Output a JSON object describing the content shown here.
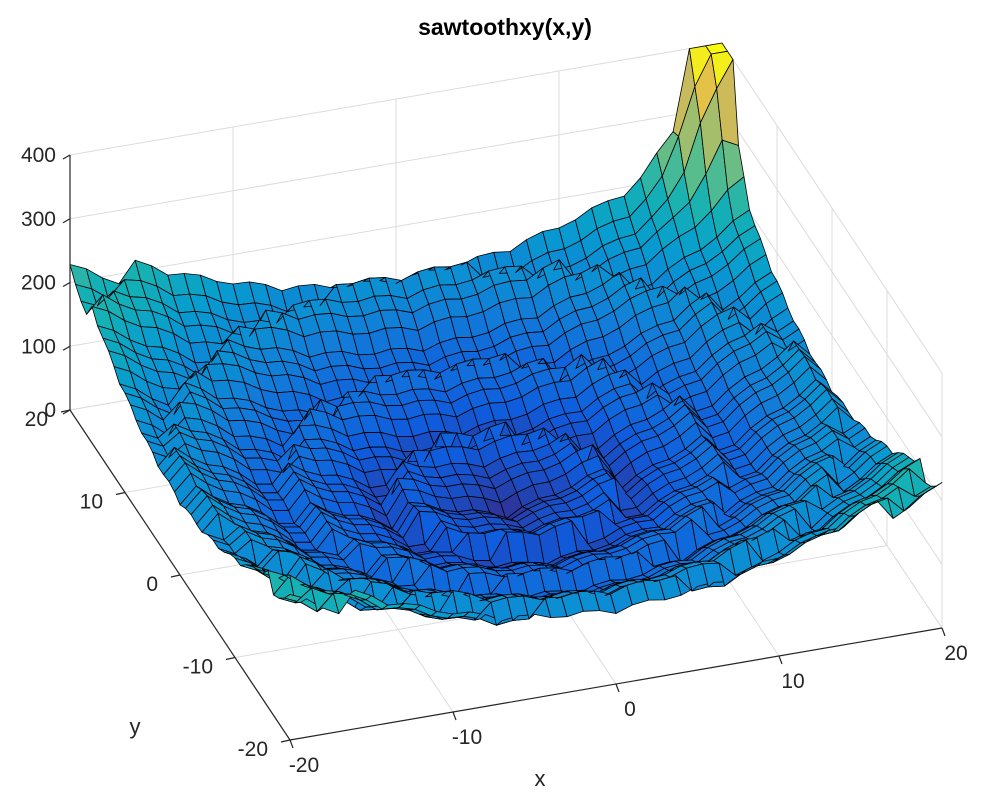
{
  "chart_data": {
    "type": "surface",
    "title": "sawtoothxy(x,y)",
    "xlabel": "x",
    "ylabel": "y",
    "zlabel": "",
    "xlim": [
      -20,
      20
    ],
    "ylim": [
      -20,
      20
    ],
    "zlim": [
      0,
      400
    ],
    "xticks": [
      -20,
      -10,
      0,
      10,
      20
    ],
    "yticks": [
      -20,
      -10,
      0,
      10,
      20
    ],
    "zticks": [
      0,
      100,
      200,
      300,
      400
    ],
    "grid": true,
    "colormap": "parula",
    "surface": {
      "grid_lines": 41,
      "domain": [
        -20,
        20
      ],
      "peak_z": 400
    }
  }
}
